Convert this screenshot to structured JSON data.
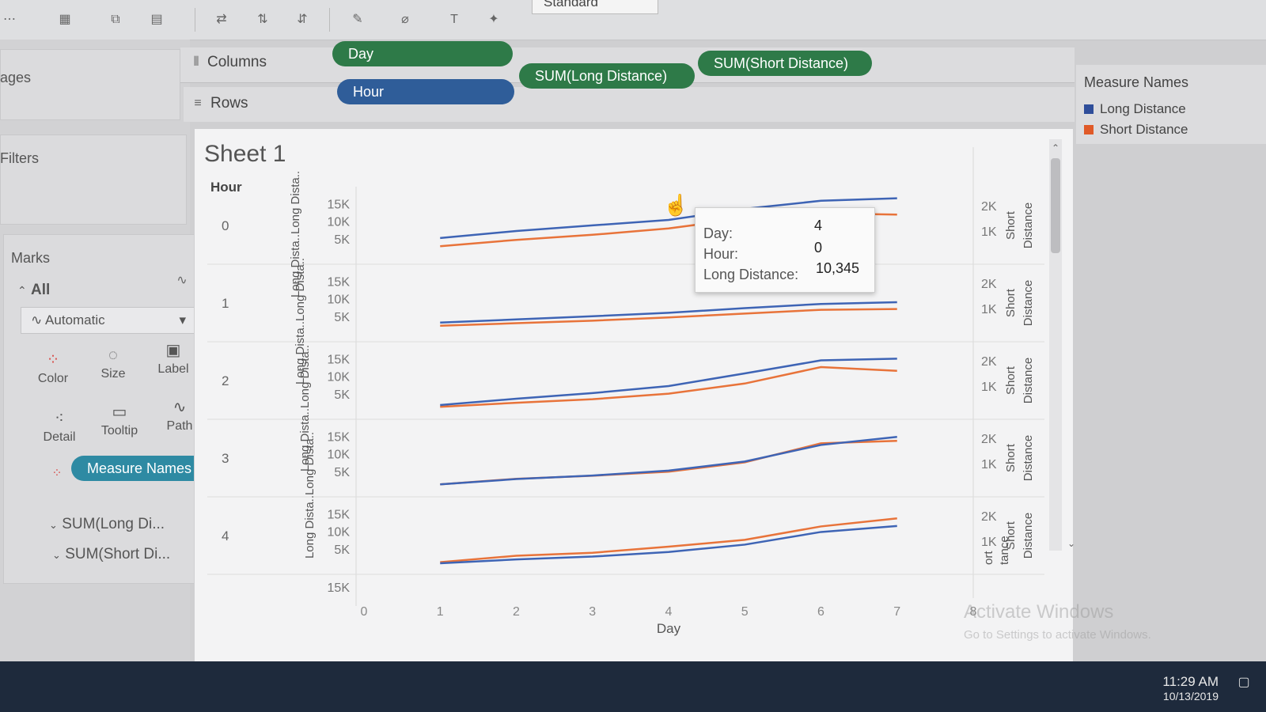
{
  "toolbar": {
    "standard_label": "Standard"
  },
  "left_pane": {
    "pages_label": "ages",
    "filters_label": "Filters",
    "marks_label": "Marks",
    "all_label": "All",
    "mark_type": "Automatic",
    "buttons": {
      "color": "Color",
      "size": "Size",
      "label": "Label",
      "detail": "Detail",
      "tooltip": "Tooltip",
      "path": "Path"
    },
    "measure_names_pill": "Measure Names",
    "measures": [
      "SUM(Long Di...",
      "SUM(Short Di..."
    ]
  },
  "shelves": {
    "columns_label": "Columns",
    "rows_label": "Rows",
    "columns_pills": [
      "Day"
    ],
    "rows_pills": [
      "Hour",
      "SUM(Long Distance)",
      "SUM(Short Distance)"
    ]
  },
  "sheet": {
    "title": "Sheet 1",
    "row_header": "Hour"
  },
  "legend": {
    "title": "Measure Names",
    "items": [
      {
        "label": "Long Distance",
        "color": "#3e64b5"
      },
      {
        "label": "Short Distance",
        "color": "#e8733a"
      }
    ]
  },
  "tooltip": {
    "day_label": "Day:",
    "day_value": "4",
    "hour_label": "Hour:",
    "hour_value": "0",
    "measure_label": "Long Distance:",
    "measure_value": "10,345"
  },
  "chart_data": {
    "type": "line",
    "x_label": "Day",
    "x_ticks": [
      "0",
      "1",
      "2",
      "3",
      "4",
      "5",
      "6",
      "7",
      "8"
    ],
    "left_axis_label": "Long Dista..",
    "left_ticks": [
      "15K",
      "10K",
      "5K"
    ],
    "right_axis_label": "Short Distance",
    "right_ticks": [
      "2K",
      "1K"
    ],
    "right_clipped_labels": [
      "ort",
      "tance"
    ],
    "x": [
      1,
      2,
      3,
      4,
      5,
      6,
      7
    ],
    "panels": [
      {
        "hour": "0",
        "long": [
          5200,
          7200,
          8800,
          10345,
          13500,
          15800,
          16500
        ],
        "short": [
          400,
          650,
          850,
          1100,
          1500,
          1700,
          1650
        ]
      },
      {
        "hour": "1",
        "long": [
          3200,
          4100,
          5000,
          6000,
          7300,
          8500,
          9000
        ],
        "short": [
          320,
          420,
          520,
          650,
          800,
          950,
          980
        ]
      },
      {
        "hour": "2",
        "long": [
          1800,
          3600,
          5200,
          7200,
          10800,
          14500,
          15000
        ],
        "short": [
          180,
          340,
          480,
          700,
          1100,
          1750,
          1600
        ]
      },
      {
        "hour": "3",
        "long": [
          1300,
          2800,
          3800,
          5200,
          7800,
          12500,
          14800
        ],
        "short": [
          180,
          400,
          520,
          680,
          1050,
          1800,
          1900
        ]
      },
      {
        "hour": "4",
        "long": [
          900,
          2000,
          2800,
          4100,
          6200,
          9800,
          11500
        ],
        "short": [
          170,
          420,
          540,
          780,
          1050,
          1580,
          1900
        ]
      }
    ],
    "series": [
      {
        "name": "Long Distance",
        "color": "#3e64b5"
      },
      {
        "name": "Short Distance",
        "color": "#e8733a"
      }
    ],
    "long_range": [
      0,
      18000
    ],
    "short_range": [
      0,
      2500
    ]
  },
  "system": {
    "time": "11:29 AM",
    "date": "10/13/2019",
    "watermark_title": "Activate Windows",
    "watermark_sub": "Go to Settings to activate Windows."
  }
}
